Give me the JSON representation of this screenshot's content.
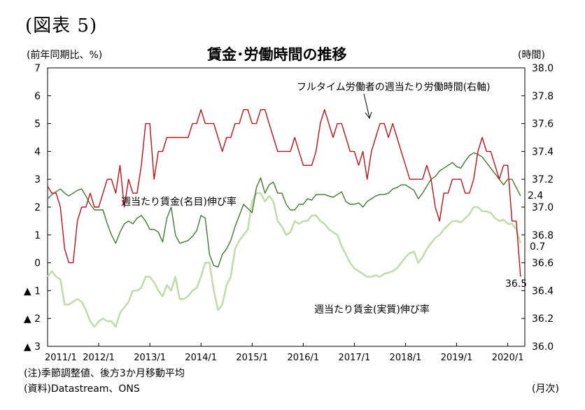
{
  "figure_label": "(図表 5)",
  "notes": {
    "note": "(注)季節調整値、後方3か月移動平均",
    "source": "(資料)Datastream、ONS",
    "x_unit": "(月次)"
  },
  "chart_data": {
    "type": "line",
    "title": "賃金･労働時間の推移",
    "left_axis": {
      "label": "(前年同期比、%)",
      "range": [
        -3,
        7
      ],
      "ticks": [
        7,
        6,
        5,
        4,
        3,
        2,
        1,
        0,
        -1,
        -2,
        -3
      ],
      "tick_labels": [
        "7",
        "6",
        "5",
        "4",
        "3",
        "2",
        "1",
        "0",
        "▲ 1",
        "▲ 2",
        "▲ 3"
      ]
    },
    "right_axis": {
      "label": "(時間)",
      "range": [
        36.0,
        38.0
      ],
      "tick_labels": [
        "38.0",
        "37.8",
        "37.6",
        "37.4",
        "37.2",
        "37.0",
        "36.8",
        "36.6",
        "36.4",
        "36.2",
        "36.0"
      ]
    },
    "x_axis": {
      "start": "2011/1",
      "months": 112,
      "tick_labels": [
        "2011/1",
        "2012/1",
        "2013/1",
        "2014/1",
        "2015/1",
        "2016/1",
        "2017/1",
        "2018/1",
        "2019/1",
        "2020/1"
      ],
      "grid": false
    },
    "grid": false,
    "series": [
      {
        "name": "フルタイム労働者の週当たり労働時間(右軸)",
        "axis": "right",
        "color": "#c0101a",
        "end_label": "36.5",
        "values": [
          37.15,
          37.1,
          37.1,
          37.0,
          36.7,
          36.6,
          36.6,
          36.9,
          37.0,
          37.0,
          37.1,
          37.0,
          37.0,
          37.1,
          37.2,
          37.2,
          37.1,
          37.3,
          37.0,
          37.2,
          37.1,
          37.1,
          37.3,
          37.6,
          37.6,
          37.2,
          37.4,
          37.4,
          37.5,
          37.5,
          37.5,
          37.5,
          37.5,
          37.5,
          37.6,
          37.6,
          37.7,
          37.6,
          37.6,
          37.6,
          37.5,
          37.4,
          37.5,
          37.5,
          37.6,
          37.6,
          37.7,
          37.7,
          37.6,
          37.6,
          37.7,
          37.7,
          37.6,
          37.5,
          37.4,
          37.4,
          37.4,
          37.4,
          37.5,
          37.4,
          37.3,
          37.3,
          37.3,
          37.4,
          37.6,
          37.7,
          37.6,
          37.5,
          37.6,
          37.6,
          37.5,
          37.4,
          37.4,
          37.3,
          37.4,
          37.2,
          37.4,
          37.5,
          37.6,
          37.6,
          37.5,
          37.6,
          37.5,
          37.4,
          37.3,
          37.2,
          37.2,
          37.2,
          37.2,
          37.3,
          37.2,
          37.0,
          36.9,
          37.1,
          37.1,
          37.2,
          37.2,
          37.2,
          37.1,
          37.1,
          37.2,
          37.4,
          37.5,
          37.4,
          37.4,
          37.3,
          37.2,
          37.3,
          37.3,
          36.9,
          36.9,
          36.5
        ]
      },
      {
        "name": "週当たり賃金(名目)伸び率",
        "axis": "left",
        "color": "#3f7a30",
        "end_label": "2.4",
        "values": [
          2.3,
          2.45,
          2.55,
          2.65,
          2.5,
          2.4,
          2.5,
          2.6,
          2.65,
          2.4,
          2.1,
          1.9,
          1.9,
          1.9,
          1.4,
          1.0,
          0.7,
          1.1,
          1.4,
          1.5,
          1.4,
          1.6,
          1.7,
          1.5,
          1.2,
          1.2,
          1.1,
          0.75,
          1.6,
          2.0,
          1.0,
          0.7,
          0.75,
          0.8,
          0.95,
          1.15,
          1.7,
          1.6,
          0.3,
          -0.1,
          -0.15,
          0.3,
          0.5,
          0.8,
          1.3,
          1.7,
          2.1,
          1.95,
          1.8,
          2.7,
          3.05,
          2.5,
          2.8,
          2.9,
          2.5,
          2.5,
          2.1,
          1.9,
          1.9,
          2.1,
          2.1,
          2.3,
          2.25,
          2.45,
          2.45,
          2.45,
          2.4,
          2.35,
          2.45,
          2.55,
          2.2,
          2.1,
          2.1,
          2.15,
          2.0,
          2.2,
          2.3,
          2.4,
          2.45,
          2.45,
          2.5,
          2.65,
          2.7,
          2.8,
          2.8,
          2.7,
          2.6,
          2.3,
          2.5,
          2.75,
          3.0,
          3.1,
          3.3,
          3.4,
          3.5,
          3.6,
          3.45,
          3.4,
          3.65,
          3.85,
          3.95,
          3.9,
          3.8,
          3.6,
          3.4,
          3.2,
          3.0,
          2.8,
          3.0,
          3.0,
          2.7,
          2.4
        ]
      },
      {
        "name": "週当たり賃金(実質)伸び率",
        "axis": "left",
        "color": "#c2dcab",
        "end_label": "0.7",
        "values": [
          -0.5,
          -0.3,
          -0.5,
          -0.6,
          -1.5,
          -1.5,
          -1.4,
          -1.3,
          -1.4,
          -1.7,
          -2.1,
          -2.3,
          -2.1,
          -2.0,
          -2.1,
          -2.1,
          -2.3,
          -1.8,
          -1.6,
          -1.4,
          -1.0,
          -1.0,
          -0.9,
          -0.5,
          -0.5,
          -0.7,
          -1.0,
          -1.2,
          -0.8,
          -1.0,
          -0.5,
          -1.3,
          -1.3,
          -1.2,
          -1.0,
          -0.9,
          -0.5,
          0.0,
          0.0,
          -1.0,
          -1.7,
          -1.5,
          -0.8,
          -0.5,
          0.5,
          0.8,
          1.0,
          1.2,
          2.2,
          2.5,
          2.5,
          2.2,
          2.4,
          2.2,
          1.5,
          1.3,
          1.0,
          1.1,
          1.5,
          1.4,
          1.5,
          1.5,
          1.7,
          1.7,
          1.5,
          1.4,
          1.2,
          1.1,
          1.0,
          0.6,
          0.3,
          0.0,
          -0.2,
          -0.3,
          -0.4,
          -0.5,
          -0.5,
          -0.45,
          -0.5,
          -0.4,
          -0.35,
          -0.3,
          -0.2,
          0.0,
          0.2,
          0.35,
          0.4,
          0.0,
          0.2,
          0.5,
          0.7,
          0.9,
          1.0,
          1.2,
          1.35,
          1.5,
          1.5,
          1.45,
          1.6,
          1.75,
          2.0,
          2.0,
          1.85,
          1.85,
          1.8,
          1.6,
          1.5,
          1.55,
          1.4,
          1.4,
          1.2,
          0.7
        ]
      }
    ]
  }
}
